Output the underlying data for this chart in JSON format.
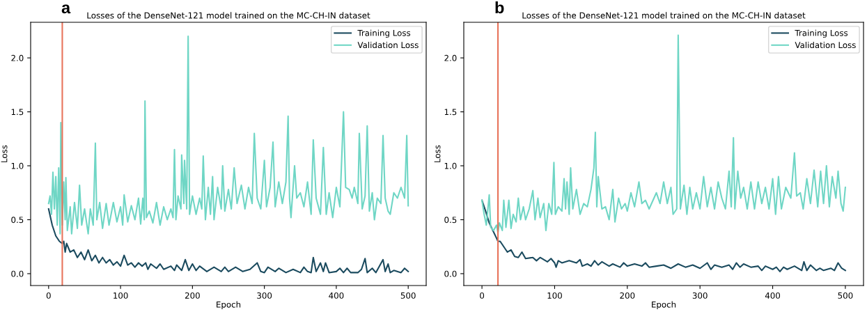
{
  "chart_data": [
    {
      "type": "line",
      "title": "Losses of the DenseNet-121 model trained on the MC-CH-IN dataset",
      "xlabel": "Epoch",
      "ylabel": "Loss",
      "annotations": [
        "a"
      ],
      "xlim": [
        -25,
        525
      ],
      "ylim": [
        -0.11,
        2.33
      ],
      "xticks": [
        0,
        100,
        200,
        300,
        400,
        500
      ],
      "yticks": [
        {
          "value": 0,
          "label": "0.0"
        },
        {
          "value": 0.5,
          "label": "0.5"
        },
        {
          "value": 1,
          "label": "1.0"
        },
        {
          "value": 1.5,
          "label": "1.5"
        },
        {
          "value": 2,
          "label": "2.0"
        }
      ],
      "legend": "top right",
      "grid": false,
      "line_style": "solid",
      "ref_lines": [
        {
          "axis": "x",
          "value": 19,
          "color": "#e8735a"
        }
      ],
      "series": [
        {
          "name": "Training Loss",
          "color": "#1a4a5e",
          "x": [
            0,
            5,
            10,
            15,
            19,
            21,
            23,
            25,
            30,
            35,
            40,
            45,
            50,
            55,
            60,
            65,
            70,
            75,
            80,
            85,
            90,
            95,
            100,
            105,
            110,
            115,
            120,
            125,
            130,
            135,
            138,
            142,
            150,
            155,
            160,
            170,
            175,
            178,
            185,
            190,
            195,
            200,
            205,
            210,
            220,
            230,
            240,
            245,
            250,
            260,
            270,
            280,
            290,
            295,
            300,
            305,
            315,
            320,
            330,
            340,
            350,
            355,
            360,
            365,
            368,
            372,
            378,
            382,
            385,
            390,
            400,
            405,
            410,
            415,
            420,
            430,
            435,
            440,
            443,
            450,
            455,
            465,
            468,
            472,
            475,
            480,
            490,
            495,
            500
          ],
          "values": [
            0.6,
            0.45,
            0.35,
            0.3,
            0.28,
            0.3,
            0.2,
            0.28,
            0.2,
            0.22,
            0.15,
            0.2,
            0.13,
            0.22,
            0.12,
            0.17,
            0.1,
            0.15,
            0.1,
            0.13,
            0.08,
            0.11,
            0.07,
            0.17,
            0.08,
            0.1,
            0.06,
            0.1,
            0.07,
            0.1,
            0.04,
            0.09,
            0.05,
            0.09,
            0.04,
            0.07,
            0.03,
            0.08,
            0.03,
            0.13,
            0.03,
            0.09,
            0.03,
            0.07,
            0.02,
            0.06,
            0.02,
            0.06,
            0.02,
            0.06,
            0.02,
            0.04,
            0.1,
            0.02,
            0.01,
            0.06,
            0.02,
            0.05,
            0.01,
            0.04,
            0.01,
            0.06,
            0.02,
            0.01,
            0.15,
            0.02,
            0.1,
            0.02,
            0.1,
            0.01,
            0.02,
            0.05,
            0.01,
            0.05,
            0.01,
            0.01,
            0.04,
            0.14,
            0.01,
            0.05,
            0.01,
            0.13,
            0.02,
            0.09,
            0.01,
            0.03,
            0.01,
            0.05,
            0.02
          ]
        },
        {
          "name": "Validation Loss",
          "color": "#6fd6c5",
          "x": [
            0,
            2,
            4,
            6,
            8,
            10,
            12,
            14,
            16,
            17,
            19,
            21,
            23,
            24,
            26,
            30,
            32,
            36,
            40,
            43,
            46,
            50,
            55,
            58,
            62,
            65,
            67,
            71,
            75,
            80,
            84,
            90,
            95,
            100,
            103,
            105,
            110,
            115,
            120,
            125,
            128,
            131,
            133,
            134,
            136,
            140,
            145,
            150,
            155,
            160,
            165,
            170,
            173,
            175,
            177,
            180,
            184,
            185,
            188,
            189,
            192,
            194,
            196,
            200,
            205,
            210,
            213,
            215,
            218,
            222,
            225,
            228,
            230,
            235,
            240,
            242,
            245,
            250,
            254,
            258,
            262,
            268,
            273,
            278,
            283,
            286,
            290,
            295,
            300,
            303,
            308,
            312,
            315,
            320,
            325,
            330,
            333,
            335,
            337,
            342,
            345,
            350,
            355,
            360,
            365,
            368,
            372,
            378,
            382,
            386,
            390,
            395,
            400,
            405,
            410,
            413,
            418,
            422,
            425,
            430,
            432,
            436,
            440,
            443,
            446,
            450,
            453,
            457,
            462,
            465,
            468,
            472,
            475,
            480,
            485,
            490,
            495,
            498,
            500
          ],
          "values": [
            0.65,
            0.72,
            0.55,
            0.94,
            0.6,
            0.9,
            0.45,
            0.98,
            0.37,
            1.4,
            0.45,
            0.85,
            0.5,
            0.89,
            0.4,
            0.62,
            0.37,
            0.66,
            0.42,
            0.82,
            0.45,
            0.6,
            0.37,
            0.6,
            0.45,
            1.21,
            0.5,
            0.66,
            0.42,
            0.65,
            0.45,
            0.66,
            0.48,
            0.62,
            0.45,
            0.73,
            0.48,
            0.63,
            0.5,
            0.7,
            0.46,
            0.7,
            0.5,
            1.6,
            0.52,
            0.58,
            0.47,
            0.66,
            0.45,
            0.62,
            0.5,
            0.6,
            0.52,
            1.15,
            0.5,
            0.72,
            0.6,
            1.1,
            0.65,
            1.05,
            0.6,
            2.2,
            0.55,
            0.72,
            0.55,
            0.7,
            0.6,
            1.09,
            0.5,
            0.8,
            0.55,
            0.9,
            0.5,
            0.8,
            0.6,
            1.0,
            0.58,
            0.78,
            0.6,
            0.98,
            0.65,
            0.82,
            0.6,
            0.8,
            0.65,
            1.3,
            0.7,
            0.6,
            1.05,
            0.62,
            0.8,
            1.22,
            0.62,
            0.85,
            0.65,
            0.85,
            1.46,
            0.7,
            0.52,
            1.0,
            0.7,
            0.75,
            0.62,
            0.85,
            0.55,
            1.24,
            0.7,
            0.55,
            1.17,
            0.55,
            0.75,
            0.52,
            0.8,
            0.62,
            1.5,
            0.8,
            0.78,
            0.7,
            0.8,
            0.65,
            1.3,
            0.6,
            0.72,
            1.37,
            0.58,
            0.75,
            0.5,
            0.7,
            0.65,
            1.28,
            0.7,
            0.58,
            0.55,
            0.75,
            0.7,
            0.8,
            0.7,
            1.28,
            0.63
          ]
        }
      ]
    },
    {
      "type": "line",
      "title": "Losses of the DenseNet-121 model trained on the MC-CH-IN dataset",
      "xlabel": "Epoch",
      "ylabel": "Loss",
      "annotations": [
        "b"
      ],
      "xlim": [
        -25,
        525
      ],
      "ylim": [
        -0.11,
        2.33
      ],
      "xticks": [
        0,
        100,
        200,
        300,
        400,
        500
      ],
      "yticks": [
        {
          "value": 0,
          "label": "0.0"
        },
        {
          "value": 0.5,
          "label": "0.5"
        },
        {
          "value": 1,
          "label": "1.0"
        },
        {
          "value": 1.5,
          "label": "1.5"
        },
        {
          "value": 2,
          "label": "2.0"
        }
      ],
      "legend": "top right",
      "grid": false,
      "line_style": "solid",
      "ref_lines": [
        {
          "axis": "x",
          "value": 22,
          "color": "#e8735a"
        }
      ],
      "series": [
        {
          "name": "Training Loss",
          "color": "#1a4a5e",
          "x": [
            0,
            5,
            10,
            15,
            20,
            22,
            25,
            30,
            35,
            40,
            45,
            50,
            55,
            60,
            70,
            75,
            80,
            90,
            95,
            100,
            102,
            105,
            110,
            120,
            130,
            135,
            138,
            145,
            150,
            155,
            160,
            165,
            175,
            180,
            190,
            195,
            200,
            210,
            220,
            225,
            230,
            240,
            250,
            260,
            270,
            280,
            290,
            300,
            310,
            315,
            320,
            330,
            340,
            345,
            350,
            355,
            360,
            370,
            380,
            385,
            390,
            400,
            405,
            410,
            415,
            420,
            430,
            440,
            443,
            447,
            452,
            460,
            465,
            470,
            480,
            485,
            490,
            495,
            500
          ],
          "values": [
            0.68,
            0.58,
            0.47,
            0.4,
            0.33,
            0.3,
            0.3,
            0.25,
            0.2,
            0.22,
            0.16,
            0.15,
            0.2,
            0.14,
            0.15,
            0.12,
            0.15,
            0.11,
            0.14,
            0.1,
            0.06,
            0.12,
            0.1,
            0.12,
            0.1,
            0.13,
            0.07,
            0.09,
            0.07,
            0.12,
            0.08,
            0.11,
            0.07,
            0.09,
            0.06,
            0.1,
            0.07,
            0.09,
            0.07,
            0.1,
            0.06,
            0.07,
            0.08,
            0.05,
            0.09,
            0.06,
            0.08,
            0.05,
            0.1,
            0.04,
            0.08,
            0.06,
            0.08,
            0.04,
            0.1,
            0.06,
            0.09,
            0.06,
            0.07,
            0.03,
            0.07,
            0.04,
            0.06,
            0.02,
            0.06,
            0.04,
            0.07,
            0.03,
            0.11,
            0.03,
            0.08,
            0.03,
            0.05,
            0.03,
            0.05,
            0.03,
            0.1,
            0.05,
            0.03
          ]
        },
        {
          "name": "Validation Loss",
          "color": "#6fd6c5",
          "x": [
            0,
            3,
            6,
            10,
            12,
            16,
            20,
            22,
            24,
            28,
            30,
            33,
            37,
            40,
            43,
            47,
            50,
            53,
            57,
            60,
            65,
            70,
            73,
            77,
            80,
            85,
            88,
            92,
            96,
            99,
            101,
            105,
            110,
            113,
            115,
            117,
            120,
            122,
            125,
            130,
            135,
            140,
            145,
            150,
            154,
            156,
            158,
            160,
            165,
            170,
            175,
            180,
            183,
            188,
            192,
            197,
            200,
            205,
            210,
            216,
            220,
            225,
            230,
            240,
            245,
            250,
            255,
            260,
            263,
            268,
            270,
            273,
            278,
            282,
            286,
            290,
            295,
            300,
            305,
            310,
            315,
            320,
            325,
            330,
            335,
            340,
            343,
            346,
            348,
            352,
            356,
            360,
            365,
            370,
            375,
            380,
            385,
            390,
            395,
            400,
            404,
            408,
            412,
            418,
            425,
            430,
            433,
            438,
            442,
            447,
            452,
            457,
            462,
            466,
            470,
            474,
            478,
            482,
            487,
            490,
            494,
            497,
            500
          ],
          "values": [
            0.68,
            0.55,
            0.45,
            0.73,
            0.43,
            0.4,
            0.45,
            0.38,
            0.47,
            0.4,
            0.68,
            0.43,
            0.68,
            0.42,
            0.55,
            0.48,
            0.7,
            0.5,
            0.62,
            0.5,
            0.6,
            0.77,
            0.5,
            0.7,
            0.52,
            0.65,
            0.4,
            0.65,
            0.55,
            1.03,
            0.55,
            0.62,
            0.58,
            0.88,
            0.6,
            0.85,
            0.55,
            0.98,
            0.6,
            0.78,
            0.55,
            0.65,
            0.62,
            0.78,
            0.98,
            1.31,
            0.62,
            0.9,
            0.6,
            0.62,
            0.5,
            0.78,
            0.48,
            0.7,
            0.6,
            0.65,
            0.58,
            0.75,
            0.62,
            0.85,
            0.65,
            0.68,
            0.6,
            0.75,
            0.65,
            0.85,
            0.65,
            0.8,
            0.55,
            0.6,
            2.21,
            0.6,
            0.82,
            0.55,
            0.8,
            0.6,
            0.75,
            0.6,
            0.9,
            0.62,
            0.8,
            0.6,
            0.85,
            0.7,
            0.6,
            0.95,
            0.62,
            1.26,
            0.6,
            0.95,
            0.7,
            0.8,
            0.6,
            0.85,
            0.6,
            0.85,
            0.65,
            0.8,
            0.6,
            0.88,
            0.55,
            0.9,
            0.6,
            0.8,
            0.7,
            1.12,
            0.72,
            0.75,
            0.6,
            0.88,
            0.65,
            0.96,
            0.62,
            0.95,
            0.65,
            1.0,
            0.62,
            0.9,
            0.7,
            0.95,
            0.65,
            0.58,
            0.8
          ]
        }
      ]
    }
  ]
}
